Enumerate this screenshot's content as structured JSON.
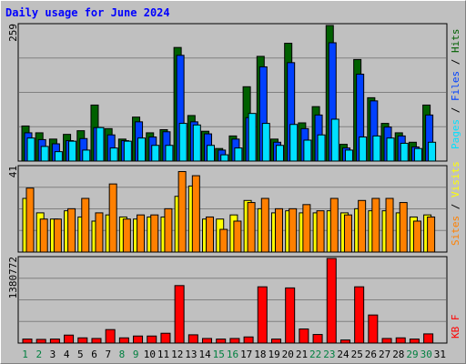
{
  "title": "Daily usage for June 2024",
  "colors": {
    "hits": "#006000",
    "files": "#0040ff",
    "pages": "#00e0ff",
    "visits": "#ffff00",
    "sites": "#ff8000",
    "kbytes": "#ff0000",
    "weekday": "#000000",
    "weekend": "#008040"
  },
  "chart_data": {
    "type": "bar",
    "categories": [
      "1",
      "2",
      "3",
      "4",
      "5",
      "6",
      "7",
      "8",
      "9",
      "10",
      "11",
      "12",
      "13",
      "14",
      "15",
      "16",
      "17",
      "18",
      "19",
      "20",
      "21",
      "22",
      "23",
      "24",
      "25",
      "26",
      "27",
      "28",
      "29",
      "30",
      "31"
    ],
    "weekend_days": [
      "1",
      "2",
      "8",
      "9",
      "15",
      "16",
      "22",
      "23",
      "29",
      "30"
    ],
    "panels": [
      {
        "id": "hits-files-pages",
        "max_label": "259",
        "ymax": 259,
        "legend": [
          "Pages",
          "Files",
          "Hits"
        ],
        "series": [
          {
            "name": "Hits",
            "values": [
              67,
              54,
              42,
              51,
              58,
              107,
              62,
              42,
              84,
              54,
              60,
              217,
              87,
              57,
              24,
              48,
              142,
              200,
              42,
              225,
              73,
              104,
              259,
              32,
              194,
              121,
              72,
              54,
              36,
              107,
              0
            ]
          },
          {
            "name": "Files",
            "values": [
              54,
              41,
              33,
              39,
              43,
              64,
              50,
              39,
              75,
              46,
              56,
              202,
              75,
              52,
              21,
              42,
              83,
              180,
              36,
              188,
              62,
              88,
              226,
              25,
              166,
              115,
              65,
              48,
              27,
              88,
              0
            ]
          },
          {
            "name": "Pages",
            "values": [
              44,
              28,
              18,
              38,
              21,
              64,
              25,
              38,
              44,
              30,
              30,
              72,
              69,
              30,
              12,
              25,
              91,
              72,
              30,
              70,
              40,
              50,
              80,
              21,
              46,
              48,
              44,
              34,
              24,
              36,
              0
            ]
          }
        ]
      },
      {
        "id": "visits-sites",
        "max_label": "41",
        "ymax": 41,
        "legend": [
          "Sites",
          "Visits"
        ],
        "series": [
          {
            "name": "Visits",
            "values": [
              26,
              19,
              16,
              20,
              17,
              15,
              18,
              17,
              16,
              17,
              17,
              27,
              32,
              16,
              16,
              18,
              25,
              21,
              19,
              20,
              19,
              19,
              20,
              19,
              21,
              20,
              20,
              19,
              17,
              18,
              0
            ]
          },
          {
            "name": "Sites",
            "values": [
              31,
              16,
              16,
              21,
              26,
              19,
              33,
              16,
              18,
              18,
              21,
              39,
              37,
              17,
              11,
              15,
              24,
              26,
              21,
              21,
              23,
              20,
              26,
              18,
              25,
              26,
              26,
              24,
              15,
              17,
              0
            ]
          }
        ]
      },
      {
        "id": "kbytes",
        "max_label": "1380772",
        "ymax": 1380772,
        "legend": [
          "KB F"
        ],
        "series": [
          {
            "name": "KB F",
            "values": [
              65000,
              60000,
              65000,
              130000,
              85000,
              75000,
              220000,
              85000,
              115000,
              115000,
              160000,
              938000,
              135000,
              75000,
              65000,
              75000,
              100000,
              918000,
              65000,
              900000,
              230000,
              140000,
              1380772,
              50000,
              918000,
              458000,
              75000,
              85000,
              65000,
              150000,
              0
            ]
          }
        ]
      }
    ]
  }
}
